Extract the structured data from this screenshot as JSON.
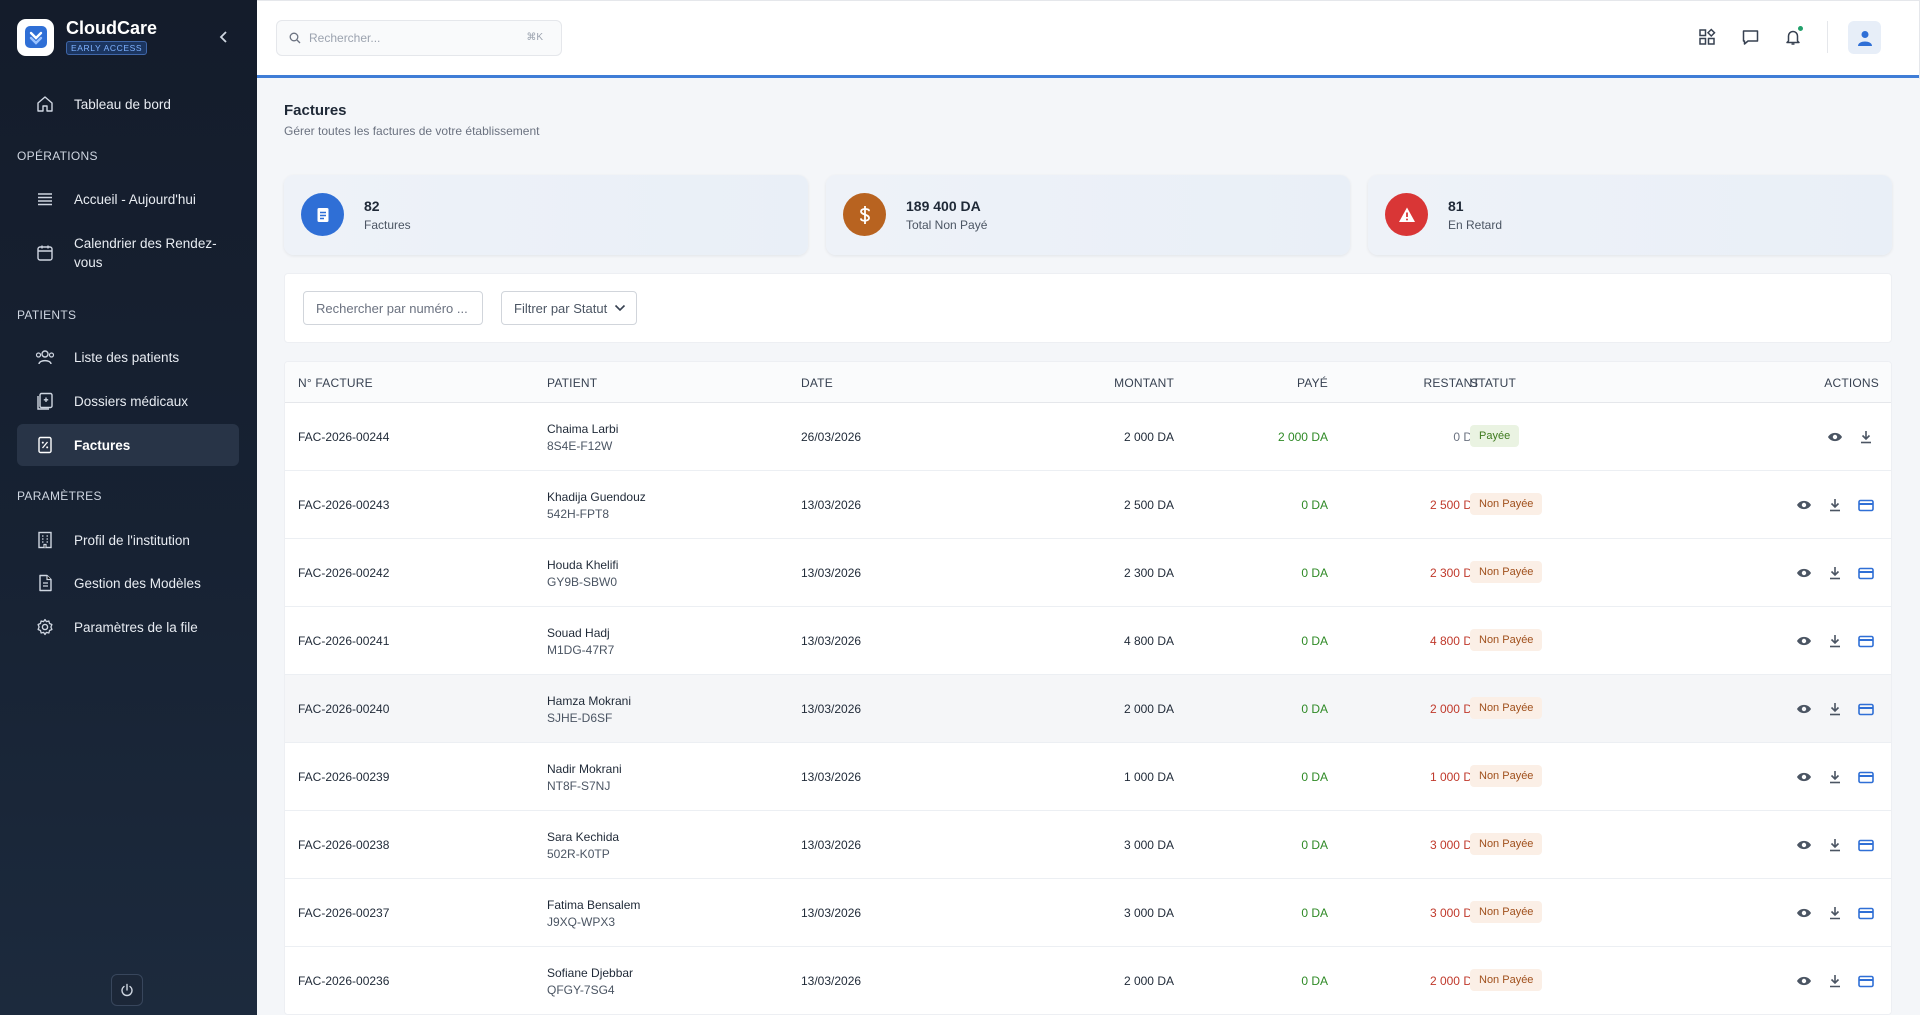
{
  "app": {
    "name": "CloudCare",
    "badge": "EARLY ACCESS"
  },
  "sidebar": {
    "dashboard": "Tableau de bord",
    "sections": {
      "operations": "OPÉRATIONS",
      "patients": "PATIENTS",
      "settings": "PARAMÈTRES"
    },
    "items": {
      "today": "Accueil - Aujourd'hui",
      "calendar": "Calendrier des Rendez-vous",
      "patient_list": "Liste des patients",
      "medical_records": "Dossiers médicaux",
      "invoices": "Factures",
      "institution": "Profil de l'institution",
      "templates": "Gestion des Modèles",
      "queue_settings": "Paramètres de la file"
    }
  },
  "topbar": {
    "search_placeholder": "Rechercher...",
    "shortcut": "⌘K"
  },
  "page": {
    "title": "Factures",
    "subtitle": "Gérer toutes les factures de votre établissement"
  },
  "stats": [
    {
      "value": "82",
      "label": "Factures",
      "color": "#2f6fd6",
      "icon": "document-icon"
    },
    {
      "value": "189 400 DA",
      "label": "Total Non Payé",
      "color": "#b86320",
      "icon": "dollar-icon"
    },
    {
      "value": "81",
      "label": "En Retard",
      "color": "#d93636",
      "icon": "warning-icon"
    }
  ],
  "filters": {
    "search_placeholder": "Rechercher par numéro ...",
    "status_label": "Filtrer par Statut"
  },
  "table": {
    "columns": {
      "number": "N° FACTURE",
      "patient": "PATIENT",
      "date": "DATE",
      "amount": "MONTANT",
      "paid": "PAYÉ",
      "remaining": "RESTANT",
      "status": "STATUT",
      "actions": "ACTIONS"
    },
    "rows": [
      {
        "number": "FAC-2026-00244",
        "patient": "Chaima Larbi",
        "pid": "8S4E-F12W",
        "date": "26/03/2026",
        "amount": "2 000 DA",
        "paid": "2 000 DA",
        "remaining": "0 DA",
        "status": "Payée"
      },
      {
        "number": "FAC-2026-00243",
        "patient": "Khadija Guendouz",
        "pid": "542H-FPT8",
        "date": "13/03/2026",
        "amount": "2 500 DA",
        "paid": "0 DA",
        "remaining": "2 500 DA",
        "status": "Non Payée"
      },
      {
        "number": "FAC-2026-00242",
        "patient": "Houda Khelifi",
        "pid": "GY9B-SBW0",
        "date": "13/03/2026",
        "amount": "2 300 DA",
        "paid": "0 DA",
        "remaining": "2 300 DA",
        "status": "Non Payée"
      },
      {
        "number": "FAC-2026-00241",
        "patient": "Souad Hadj",
        "pid": "M1DG-47R7",
        "date": "13/03/2026",
        "amount": "4 800 DA",
        "paid": "0 DA",
        "remaining": "4 800 DA",
        "status": "Non Payée"
      },
      {
        "number": "FAC-2026-00240",
        "patient": "Hamza Mokrani",
        "pid": "SJHE-D6SF",
        "date": "13/03/2026",
        "amount": "2 000 DA",
        "paid": "0 DA",
        "remaining": "2 000 DA",
        "status": "Non Payée"
      },
      {
        "number": "FAC-2026-00239",
        "patient": "Nadir Mokrani",
        "pid": "NT8F-S7NJ",
        "date": "13/03/2026",
        "amount": "1 000 DA",
        "paid": "0 DA",
        "remaining": "1 000 DA",
        "status": "Non Payée"
      },
      {
        "number": "FAC-2026-00238",
        "patient": "Sara Kechida",
        "pid": "502R-K0TP",
        "date": "13/03/2026",
        "amount": "3 000 DA",
        "paid": "0 DA",
        "remaining": "3 000 DA",
        "status": "Non Payée"
      },
      {
        "number": "FAC-2026-00237",
        "patient": "Fatima Bensalem",
        "pid": "J9XQ-WPX3",
        "date": "13/03/2026",
        "amount": "3 000 DA",
        "paid": "0 DA",
        "remaining": "3 000 DA",
        "status": "Non Payée"
      },
      {
        "number": "FAC-2026-00236",
        "patient": "Sofiane Djebbar",
        "pid": "QFGY-7SG4",
        "date": "13/03/2026",
        "amount": "2 000 DA",
        "paid": "0 DA",
        "remaining": "2 000 DA",
        "status": "Non Payée"
      }
    ]
  }
}
